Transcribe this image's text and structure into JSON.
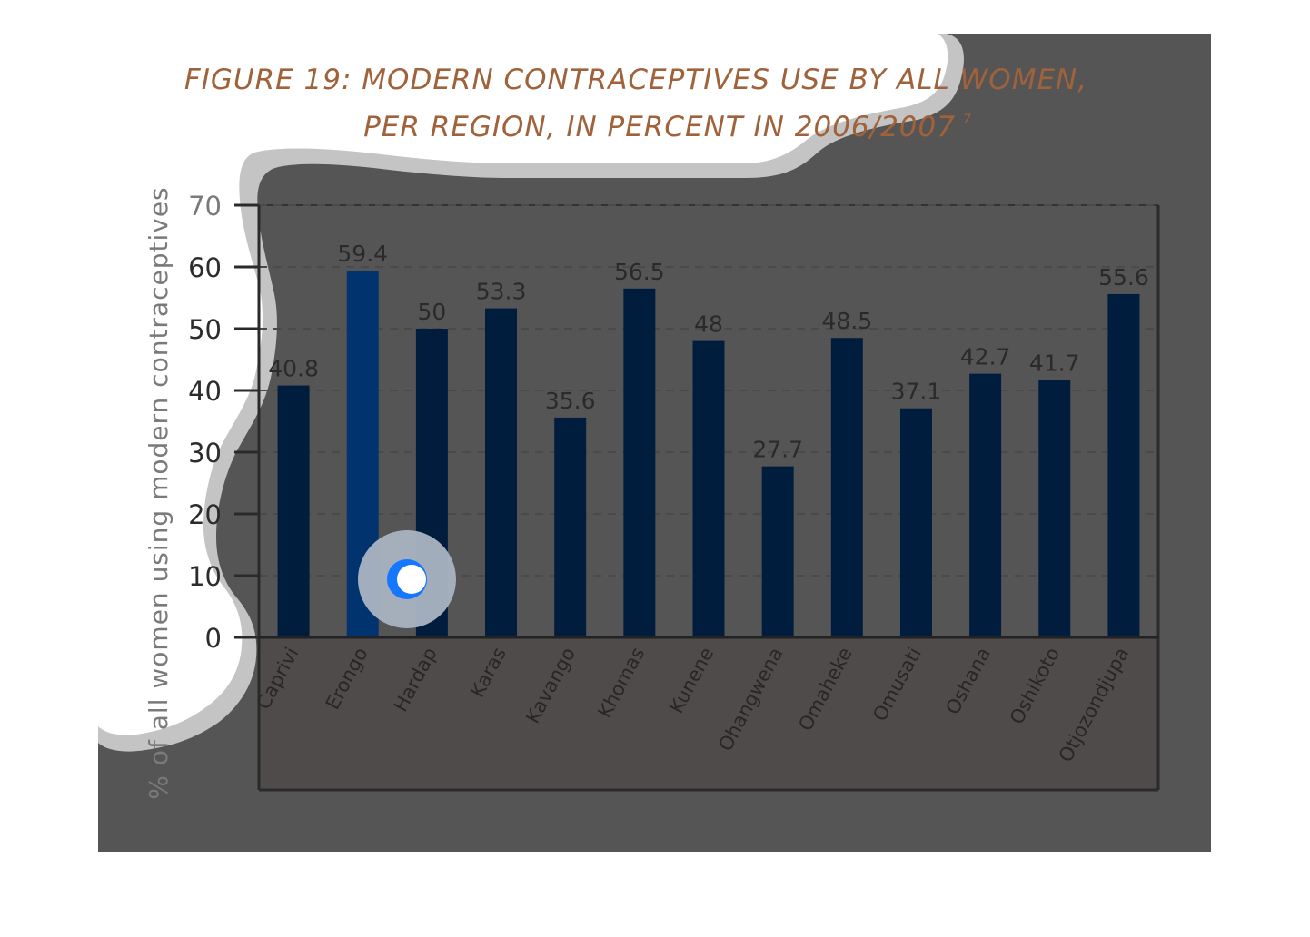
{
  "chart_data": {
    "type": "bar",
    "title_line1": "FIGURE 19: MODERN CONTRACEPTIVES USE BY ALL WOMEN,",
    "title_line2": "PER REGION, IN PERCENT IN 2006/2007",
    "title_footnote": "7",
    "ylabel": "% of all women using modern contraceptives",
    "xlabel": "",
    "categories": [
      "Caprivi",
      "Erongo",
      "Hardap",
      "Karas",
      "Kavango",
      "Khomas",
      "Kunene",
      "Ohangwena",
      "Omaheke",
      "Omusati",
      "Oshana",
      "Oshikoto",
      "Otjozondjupa"
    ],
    "values": [
      40.8,
      59.4,
      50,
      53.3,
      35.6,
      56.5,
      48,
      27.7,
      48.5,
      37.1,
      42.7,
      41.7,
      55.6
    ],
    "data_labels": [
      "40.8",
      "59.4",
      "50",
      "53.3",
      "35.6",
      "56.5",
      "48",
      "27.7",
      "48.5",
      "37.1",
      "42.7",
      "41.7",
      "55.6"
    ],
    "yticks": [
      0,
      10,
      20,
      30,
      40,
      50,
      60,
      70
    ],
    "ylim": [
      0,
      70
    ],
    "grid": "horizontal dashed",
    "legend": "none",
    "colors": {
      "bar": "#011d3d",
      "bar_highlight": "#01336e",
      "title": "#a0623a",
      "overlay": "#555555",
      "lower_band": "#4f4b4b",
      "halo": "#c8c8c8",
      "cursor": "#1577ff"
    }
  }
}
